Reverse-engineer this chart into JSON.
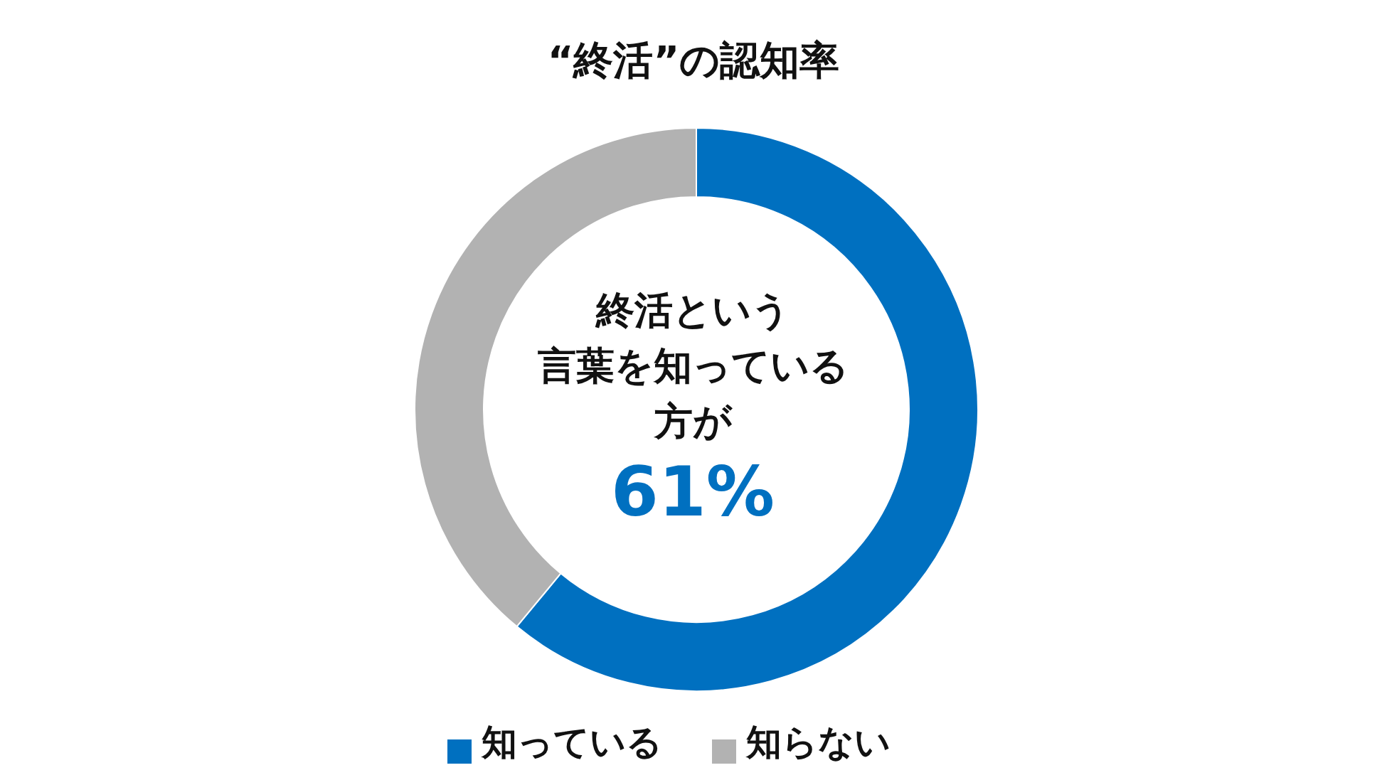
{
  "chart_data": {
    "type": "donut",
    "title": "“終活”の認知率",
    "categories": [
      "知っている",
      "知らない"
    ],
    "values": [
      61,
      39
    ],
    "colors": [
      "#0070c0",
      "#b2b2b2"
    ],
    "legend": "bottom",
    "annotations": [
      "終活という",
      "言葉を知っている",
      "方が",
      "61%"
    ]
  }
}
